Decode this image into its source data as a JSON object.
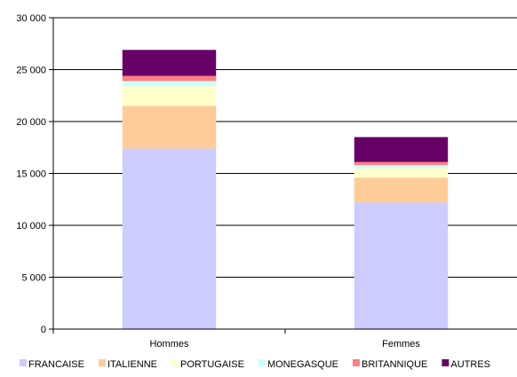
{
  "chart_data": {
    "type": "bar",
    "stacked": true,
    "categories": [
      "Hommes",
      "Femmes"
    ],
    "series": [
      {
        "name": "FRANCAISE",
        "color": "#ccccff",
        "values": [
          17400,
          12200
        ]
      },
      {
        "name": "ITALIENNE",
        "color": "#ffcc99",
        "values": [
          4100,
          2400
        ]
      },
      {
        "name": "PORTUGAISE",
        "color": "#ffffcc",
        "values": [
          1900,
          900
        ]
      },
      {
        "name": "MONEGASQUE",
        "color": "#ccffff",
        "values": [
          500,
          300
        ]
      },
      {
        "name": "BRITANNIQUE",
        "color": "#ff8080",
        "values": [
          500,
          300
        ]
      },
      {
        "name": "AUTRES",
        "color": "#660066",
        "values": [
          2500,
          2400
        ]
      }
    ],
    "yticks": [
      "0",
      "5 000",
      "10 000",
      "15 000",
      "20 000",
      "25 000",
      "30 000"
    ],
    "ylim": [
      0,
      30000
    ],
    "grid": true,
    "legend_position": "bottom"
  }
}
